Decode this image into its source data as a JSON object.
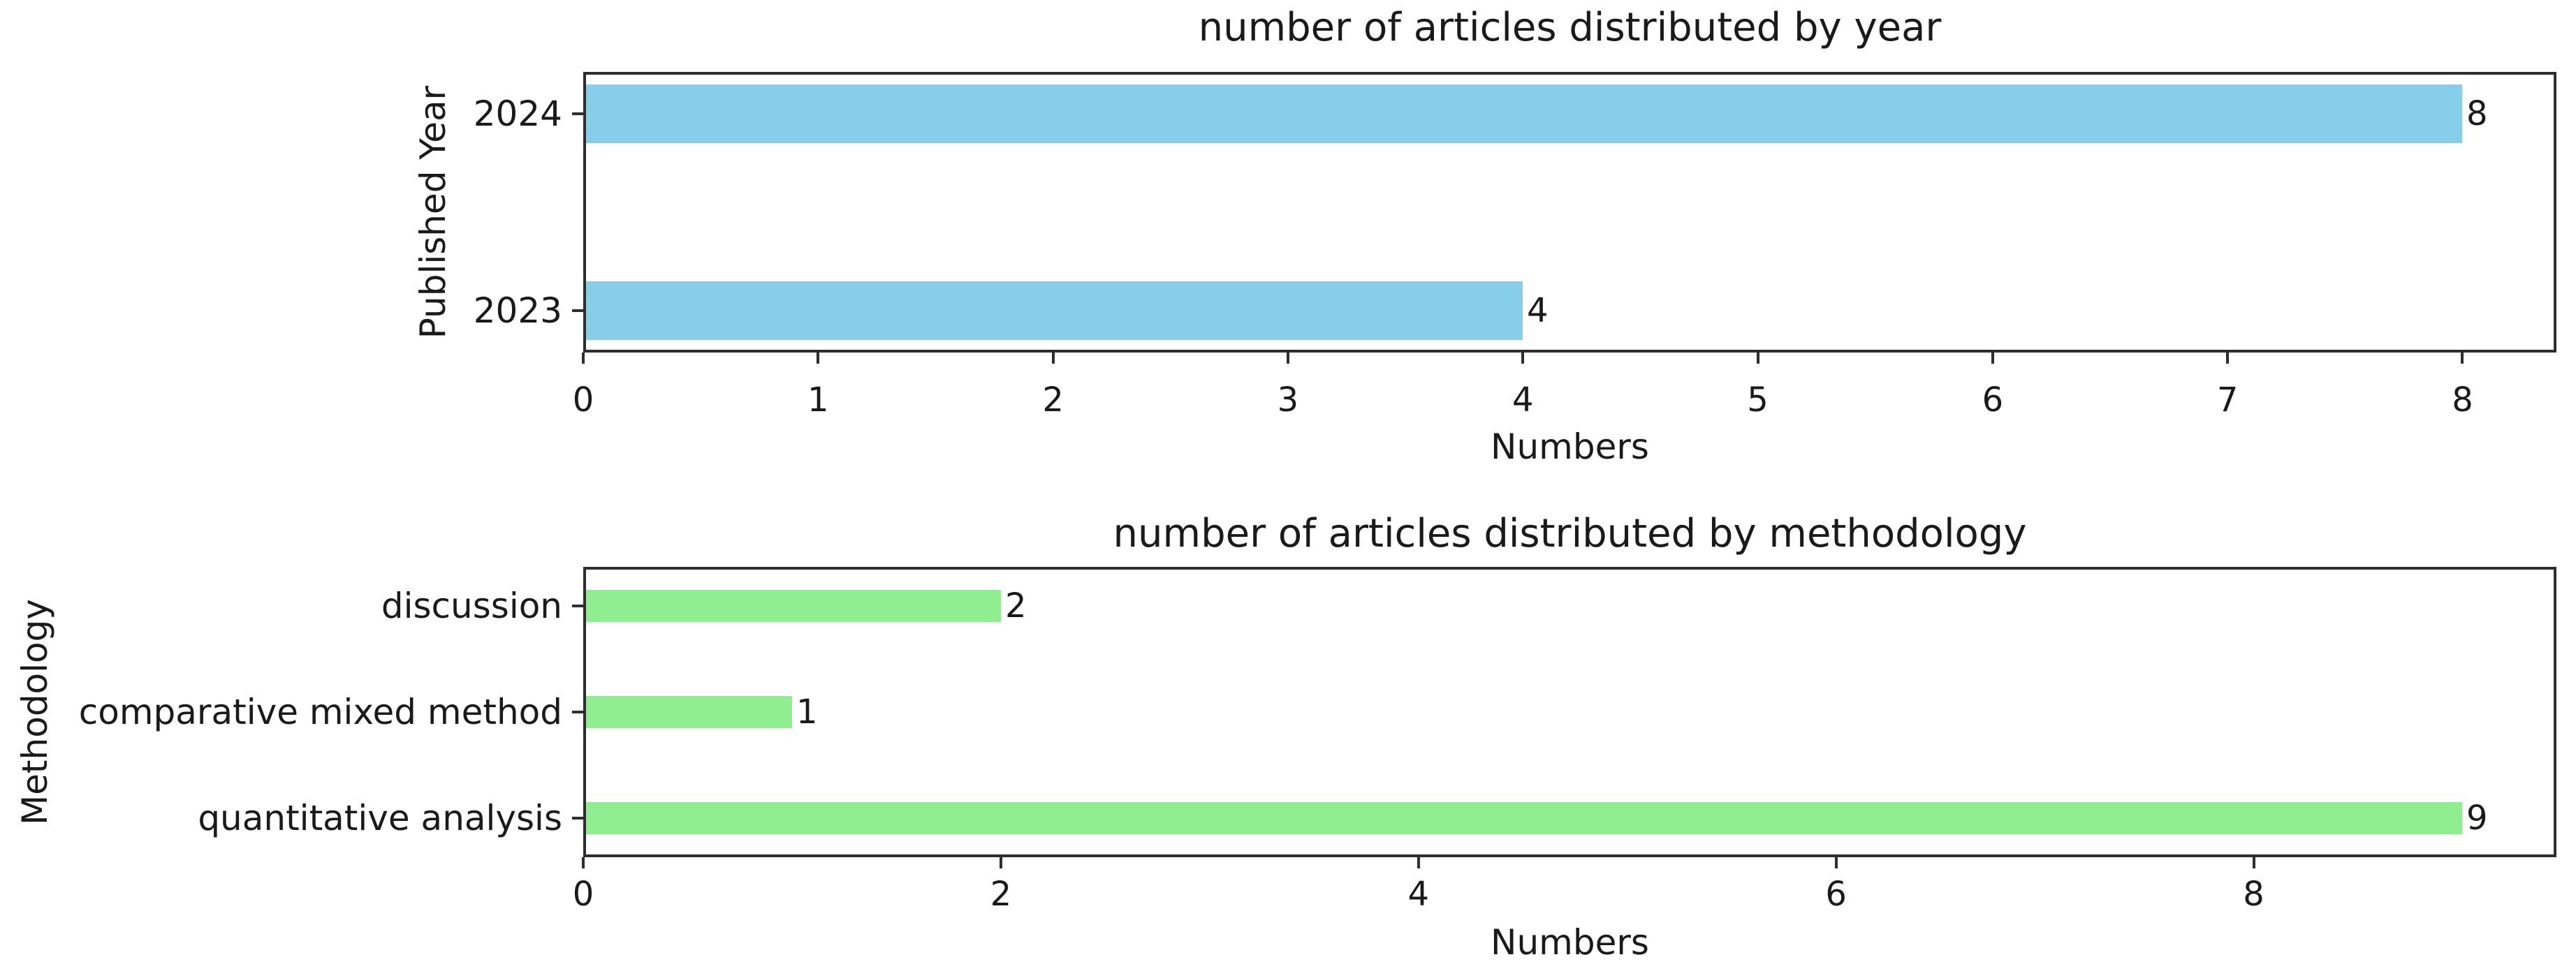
{
  "figure": {
    "background": "#ffffff",
    "text_color": "#1a1a1a",
    "spine_color": "#2e2e2e"
  },
  "chart_data": [
    {
      "type": "bar",
      "orientation": "horizontal",
      "title": "number of articles distributed by year",
      "xlabel": "Numbers",
      "ylabel": "Published Year",
      "categories": [
        "2024",
        "2023"
      ],
      "values": [
        8,
        4
      ],
      "value_labels": [
        "8",
        "4"
      ],
      "bar_color": "#87ceeb",
      "xlim": [
        0,
        8.4
      ],
      "xticks": [
        "0",
        "1",
        "2",
        "3",
        "4",
        "5",
        "6",
        "7",
        "8"
      ],
      "xtick_values": [
        0,
        1,
        2,
        3,
        4,
        5,
        6,
        7,
        8
      ],
      "grid": false,
      "legend": null
    },
    {
      "type": "bar",
      "orientation": "horizontal",
      "title": "number of articles distributed by methodology",
      "xlabel": "Numbers",
      "ylabel": "Methodology",
      "categories": [
        "discussion",
        "comparative mixed method",
        "quantitative analysis"
      ],
      "values": [
        2,
        1,
        9
      ],
      "value_labels": [
        "2",
        "1",
        "9"
      ],
      "bar_color": "#90ee90",
      "xlim": [
        0,
        9.45
      ],
      "xticks": [
        "0",
        "2",
        "4",
        "6",
        "8"
      ],
      "xtick_values": [
        0,
        2,
        4,
        6,
        8
      ],
      "grid": false,
      "legend": null
    }
  ]
}
